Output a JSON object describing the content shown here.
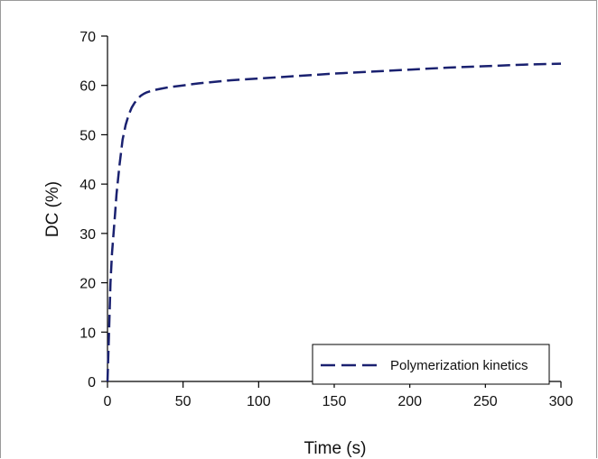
{
  "chart_data": {
    "type": "line",
    "title": "",
    "xlabel": "Time (s)",
    "ylabel": "DC (%)",
    "xlim": [
      0,
      300
    ],
    "ylim": [
      0,
      70
    ],
    "x_ticks": [
      "0",
      "50",
      "100",
      "150",
      "200",
      "250",
      "300"
    ],
    "y_ticks": [
      "0",
      "10",
      "20",
      "30",
      "40",
      "50",
      "60",
      "70"
    ],
    "grid": false,
    "legend_position": "bottom-right",
    "series": [
      {
        "name": "Polymerization kinetics",
        "color": "#1a2170",
        "line_style": "dashed",
        "x": [
          0,
          1,
          2,
          3,
          4,
          5,
          6,
          8,
          10,
          12,
          14,
          16,
          18,
          20,
          22,
          24,
          26,
          28,
          30,
          35,
          40,
          50,
          60,
          80,
          100,
          125,
          150,
          175,
          200,
          225,
          250,
          275,
          300
        ],
        "y": [
          0,
          10,
          20,
          26,
          30,
          34,
          38,
          44,
          49,
          52,
          54,
          55.5,
          56.5,
          57.3,
          57.9,
          58.3,
          58.6,
          58.8,
          59,
          59.3,
          59.6,
          60,
          60.4,
          61,
          61.4,
          61.9,
          62.4,
          62.8,
          63.2,
          63.6,
          63.9,
          64.2,
          64.4
        ]
      }
    ]
  }
}
